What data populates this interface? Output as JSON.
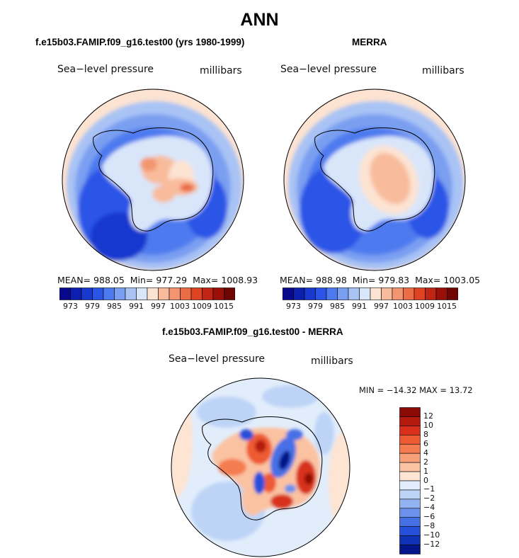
{
  "main_title": "ANN",
  "panels": [
    {
      "title": "f.e15b03.FAMIP.f09_g16.test00 (yrs 1980-1999)",
      "variable_label": "Sea−level pressure",
      "units_label": "millibars",
      "stats": {
        "mean_label": "MEAN=",
        "mean": "988.05",
        "min_label": "Min=",
        "min": "977.29",
        "max_label": "Max=",
        "max": "1008.93"
      }
    },
    {
      "title": "MERRA",
      "variable_label": "Sea−level pressure",
      "units_label": "millibars",
      "stats": {
        "mean_label": "MEAN=",
        "mean": "988.98",
        "min_label": "Min=",
        "min": "979.83",
        "max_label": "Max=",
        "max": "1003.05"
      }
    },
    {
      "title": "f.e15b03.FAMIP.f09_g16.test00 - MERRA",
      "variable_label": "Sea−level pressure",
      "units_label": "millibars",
      "stats_text": "MIN = −14.32 MAX =  13.72"
    }
  ],
  "abs_colorbar": {
    "colors": [
      "#08088c",
      "#0d1fae",
      "#1838cf",
      "#2a55e6",
      "#4d7aef",
      "#7a9ff1",
      "#a9c3f5",
      "#d9e6fa",
      "#fde3d2",
      "#f8bc9c",
      "#f39570",
      "#ec6c45",
      "#e04321",
      "#c02414",
      "#981008",
      "#6e0502"
    ],
    "ticks": [
      "973",
      "979",
      "985",
      "991",
      "997",
      "1003",
      "1009",
      "1015"
    ]
  },
  "diff_colorbar": {
    "colors_top_to_bottom": [
      "#8c0a05",
      "#b51a0e",
      "#d8301b",
      "#ee5a32",
      "#f47c50",
      "#f8a07a",
      "#fbc2a2",
      "#fde4d3",
      "#e2edfb",
      "#bed4f7",
      "#94b4f1",
      "#6b91ec",
      "#4670e6",
      "#2650d9",
      "#1032b4",
      "#03168a"
    ],
    "ticks": [
      "12",
      "10",
      "8",
      "6",
      "4",
      "2",
      "1",
      "0",
      "−1",
      "−2",
      "−4",
      "−6",
      "−8",
      "−10",
      "−12"
    ]
  },
  "chart_data": [
    {
      "type": "heatmap",
      "title": "f.e15b03.FAMIP.f09_g16.test00 (yrs 1980-1999)",
      "variable": "Sea-level pressure",
      "units": "millibars",
      "projection": "south polar stereographic",
      "levels": [
        973,
        976,
        979,
        982,
        985,
        988,
        991,
        994,
        997,
        1000,
        1003,
        1006,
        1009,
        1012,
        1015
      ],
      "mean": 988.05,
      "min": 977.29,
      "max": 1008.93
    },
    {
      "type": "heatmap",
      "title": "MERRA",
      "variable": "Sea-level pressure",
      "units": "millibars",
      "projection": "south polar stereographic",
      "levels": [
        973,
        976,
        979,
        982,
        985,
        988,
        991,
        994,
        997,
        1000,
        1003,
        1006,
        1009,
        1012,
        1015
      ],
      "mean": 988.98,
      "min": 979.83,
      "max": 1003.05
    },
    {
      "type": "heatmap",
      "title": "f.e15b03.FAMIP.f09_g16.test00 - MERRA",
      "variable": "Sea-level pressure",
      "units": "millibars",
      "projection": "south polar stereographic",
      "levels": [
        -12,
        -10,
        -8,
        -6,
        -4,
        -2,
        -1,
        0,
        1,
        2,
        4,
        6,
        8,
        10,
        12
      ],
      "min": -14.32,
      "max": 13.72
    }
  ]
}
